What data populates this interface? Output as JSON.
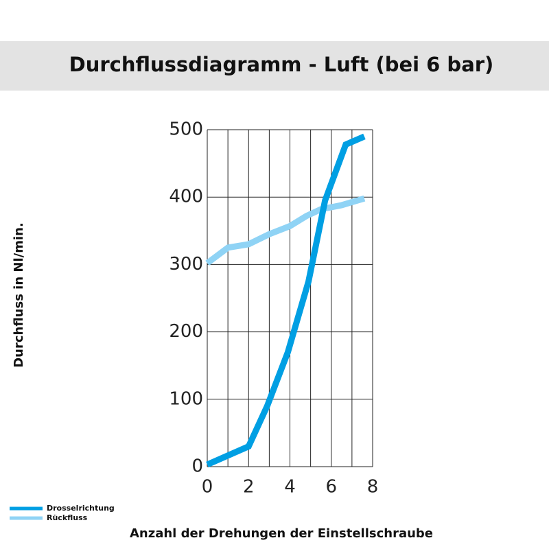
{
  "chart_data": {
    "type": "line",
    "title": "Durchflussdiagramm - Luft (bei 6 bar)",
    "xlabel": "Anzahl der Drehungen der Einstellschraube",
    "ylabel": "Durchfluss in Nl/min.",
    "xlim": [
      0,
      8
    ],
    "xticks": [
      0,
      2,
      4,
      6,
      8
    ],
    "x_minor_ticks": [
      1,
      3,
      5,
      7
    ],
    "ylim": [
      0,
      500
    ],
    "yticks": [
      0,
      100,
      200,
      300,
      400,
      500
    ],
    "grid": true,
    "legend": "bottom-left",
    "series": [
      {
        "name": "Drosselrichtung",
        "color": "#009fe3",
        "x": [
          0,
          2,
          2.9,
          3.9,
          4.9,
          5.7,
          6.7,
          7.6
        ],
        "values": [
          3,
          30,
          90,
          170,
          275,
          395,
          478,
          490
        ]
      },
      {
        "name": "Rückfluss",
        "color": "#8fd3f5",
        "x": [
          0,
          1,
          2,
          3,
          4,
          4.8,
          5.5,
          6.5,
          7.6
        ],
        "values": [
          302,
          325,
          330,
          345,
          357,
          372,
          382,
          388,
          398
        ]
      }
    ]
  }
}
